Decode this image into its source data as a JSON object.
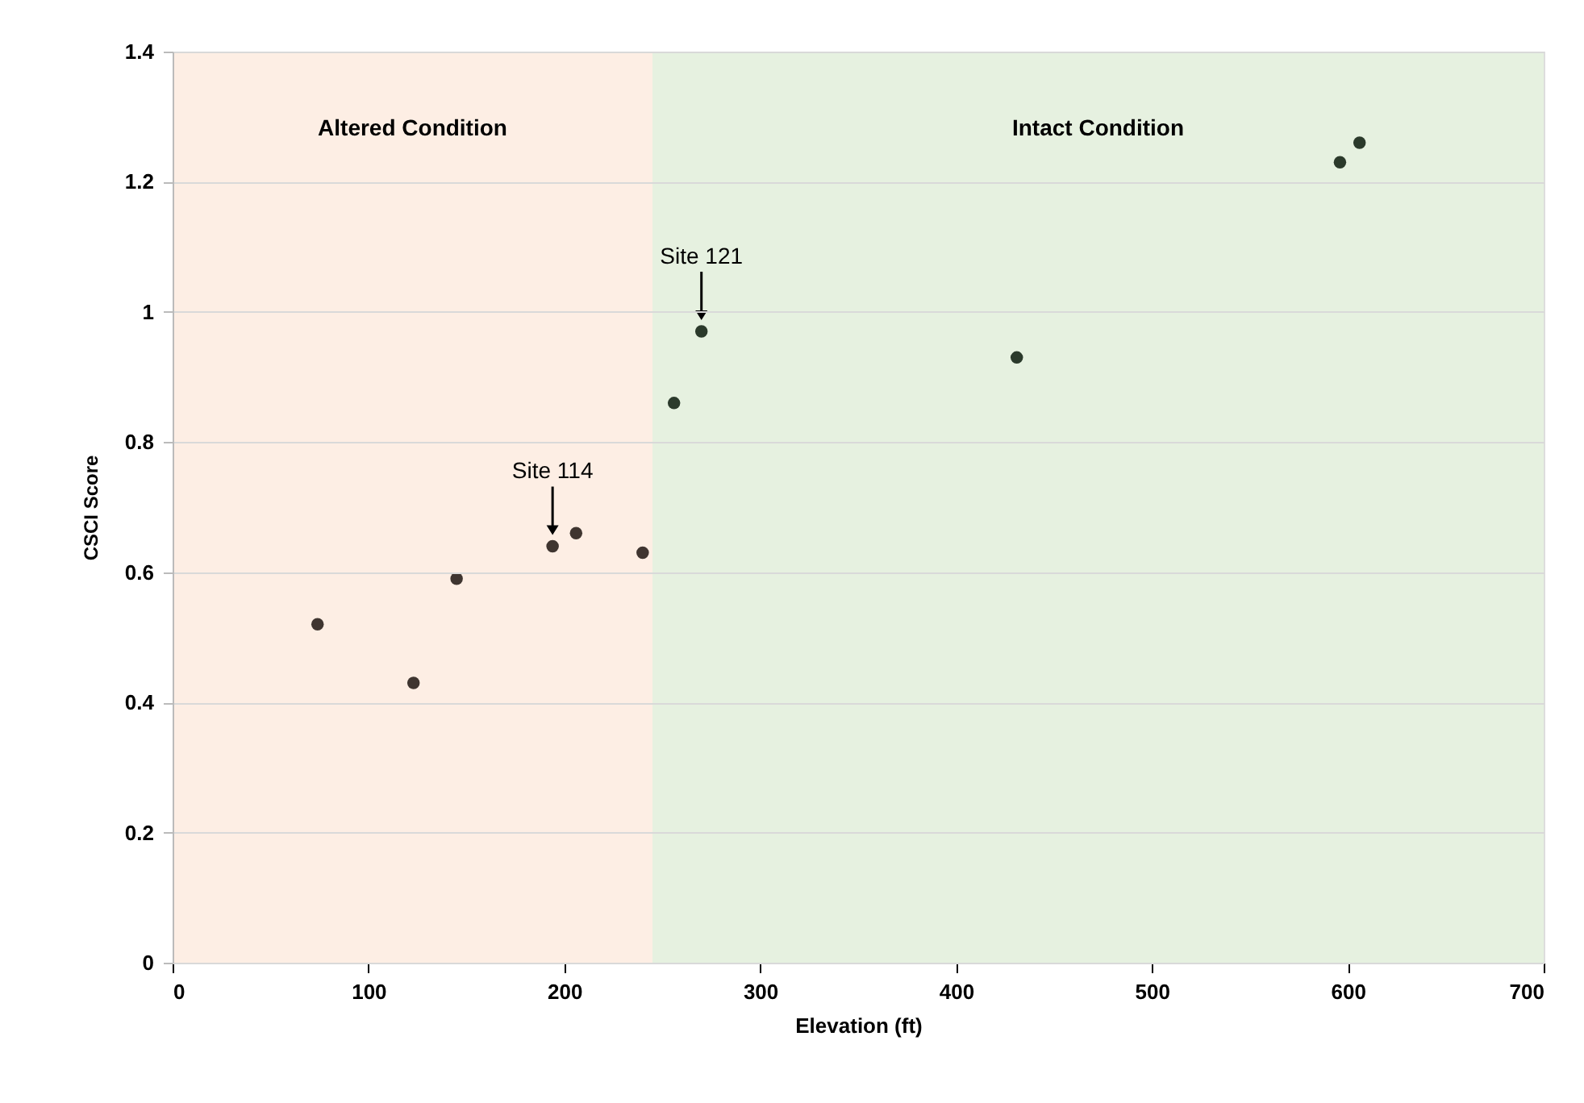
{
  "chart_data": {
    "type": "scatter",
    "xlabel": "Elevation (ft)",
    "ylabel": "CSCI Score",
    "x": [
      74,
      123,
      145,
      194,
      206,
      240,
      256,
      270,
      431,
      596,
      606
    ],
    "values": [
      0.52,
      0.43,
      0.59,
      0.64,
      0.66,
      0.63,
      0.86,
      0.97,
      0.93,
      1.23,
      1.26
    ],
    "colors": [
      "#3f3530",
      "#3f3530",
      "#3f3530",
      "#3f3530",
      "#3f3530",
      "#3f3530",
      "#2b3a2b",
      "#2b3a2b",
      "#2b3a2b",
      "#2b3a2b",
      "#2b3a2b"
    ],
    "xlim": [
      0,
      700
    ],
    "xticks": [
      0,
      100,
      200,
      300,
      400,
      500,
      600,
      700
    ],
    "ylim": [
      0,
      1.4
    ],
    "yticks": [
      0,
      0.2,
      0.4,
      0.6,
      0.8,
      1,
      1.2,
      1.4
    ],
    "grid": "y",
    "marker": "circle",
    "bands": [
      {
        "axis": "x",
        "from": 0,
        "to": 245,
        "label": "Altered Condition",
        "color": "#fdeee4"
      },
      {
        "axis": "x",
        "from": 245,
        "to": 700,
        "label": "Intact Condition",
        "color": "#e6f1e0"
      }
    ],
    "annotations": [
      {
        "text": "Site 114",
        "x": 194,
        "y": 0.64
      },
      {
        "text": "Site 121",
        "x": 270,
        "y": 0.97
      }
    ]
  }
}
